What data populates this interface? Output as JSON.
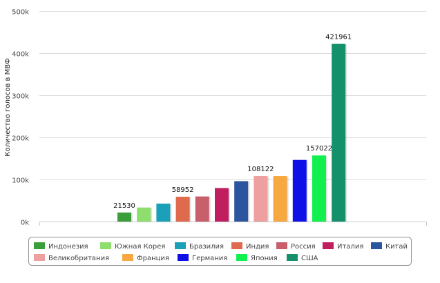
{
  "chart_data": {
    "type": "bar",
    "ylabel": "Количество голосов в МВФ",
    "xlabel": "",
    "ylim": [
      0,
      500000
    ],
    "yticks": [
      0,
      100000,
      200000,
      300000,
      400000,
      500000
    ],
    "ytick_labels": [
      "0k",
      "100k",
      "200k",
      "300k",
      "400k",
      "500k"
    ],
    "grid": true,
    "legend_position": "bottom",
    "categories": [
      "Индонезия",
      "Южная Корея",
      "Бразилия",
      "Индия",
      "Россия",
      "Италия",
      "Китай",
      "Великобритания",
      "Франция",
      "Германия",
      "Япония",
      "США"
    ],
    "values": [
      21530,
      33366,
      42702,
      58952,
      59645,
      79658,
      95996,
      108122,
      108122,
      146392,
      157022,
      421961
    ],
    "colors": [
      "#3a9e3a",
      "#8ede6e",
      "#1aa0b8",
      "#e06a4e",
      "#c8606c",
      "#c01e5e",
      "#2c55a0",
      "#eea0a0",
      "#f8a840",
      "#0f0fe8",
      "#12f050",
      "#14906a"
    ],
    "data_labels": [
      {
        "index": 0,
        "text": "21530"
      },
      {
        "index": 3,
        "text": "58952"
      },
      {
        "index": 7,
        "text": "108122"
      },
      {
        "index": 10,
        "text": "157022"
      },
      {
        "index": 11,
        "text": "421961"
      }
    ]
  }
}
